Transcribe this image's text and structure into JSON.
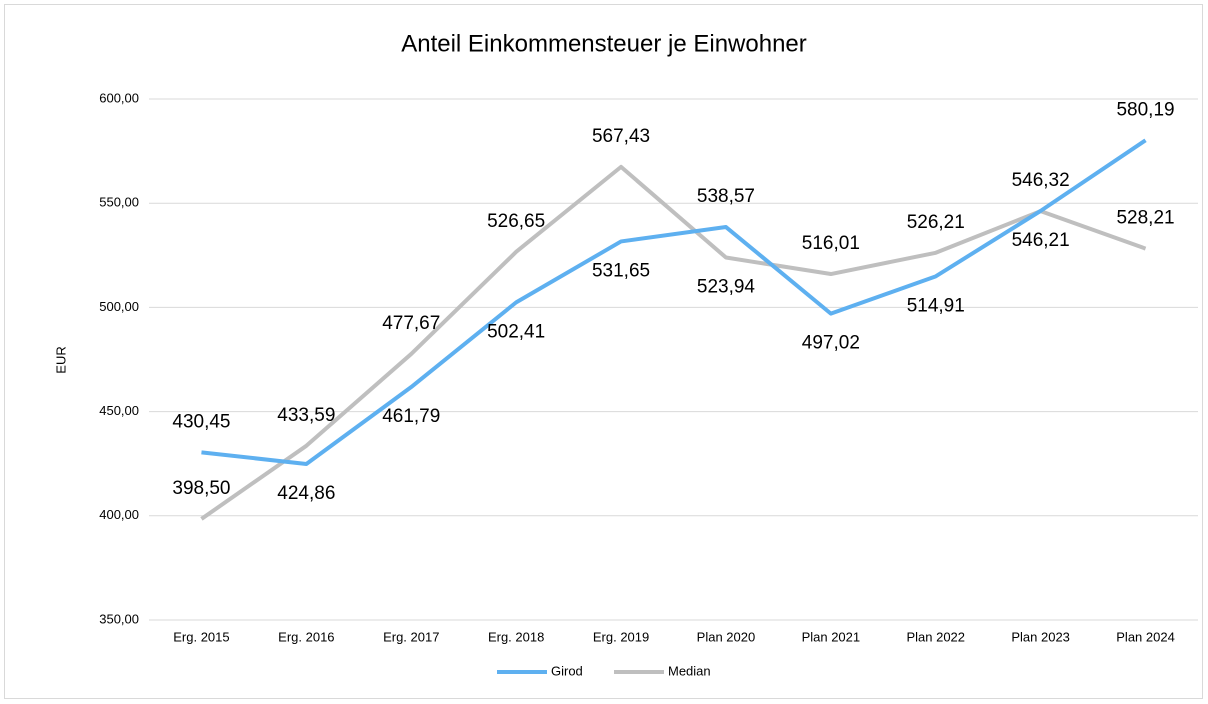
{
  "chart_data": {
    "type": "line",
    "title": "Anteil Einkommensteuer je Einwohner",
    "y_label": "EUR",
    "categories": [
      "Erg. 2015",
      "Erg. 2016",
      "Erg. 2017",
      "Erg. 2018",
      "Erg. 2019",
      "Plan 2020",
      "Plan 2021",
      "Plan 2022",
      "Plan 2023",
      "Plan 2024"
    ],
    "series": [
      {
        "name": "Girod",
        "color": "#5eb0f0",
        "values": [
          430.45,
          424.86,
          461.79,
          502.41,
          531.65,
          538.57,
          497.02,
          514.91,
          546.32,
          580.19
        ],
        "value_labels": [
          "430,45",
          "424,86",
          "461,79",
          "502,41",
          "531,65",
          "538,57",
          "497,02",
          "514,91",
          "546,32",
          "580,19"
        ]
      },
      {
        "name": "Median",
        "color": "#bfbfbf",
        "values": [
          398.5,
          433.59,
          477.67,
          526.65,
          567.43,
          523.94,
          516.01,
          526.21,
          546.21,
          528.21
        ],
        "value_labels": [
          "398,50",
          "433,59",
          "477,67",
          "526,65",
          "567,43",
          "523,94",
          "516,01",
          "526,21",
          "546,21",
          "528,21"
        ]
      }
    ],
    "ylim": [
      350,
      600
    ],
    "yticks": [
      {
        "value": 350,
        "label": "350,00"
      },
      {
        "value": 400,
        "label": "400,00"
      },
      {
        "value": 450,
        "label": "450,00"
      },
      {
        "value": 500,
        "label": "500,00"
      },
      {
        "value": 550,
        "label": "550,00"
      },
      {
        "value": 600,
        "label": "600,00"
      }
    ],
    "grid": true,
    "legend": "bottom"
  }
}
